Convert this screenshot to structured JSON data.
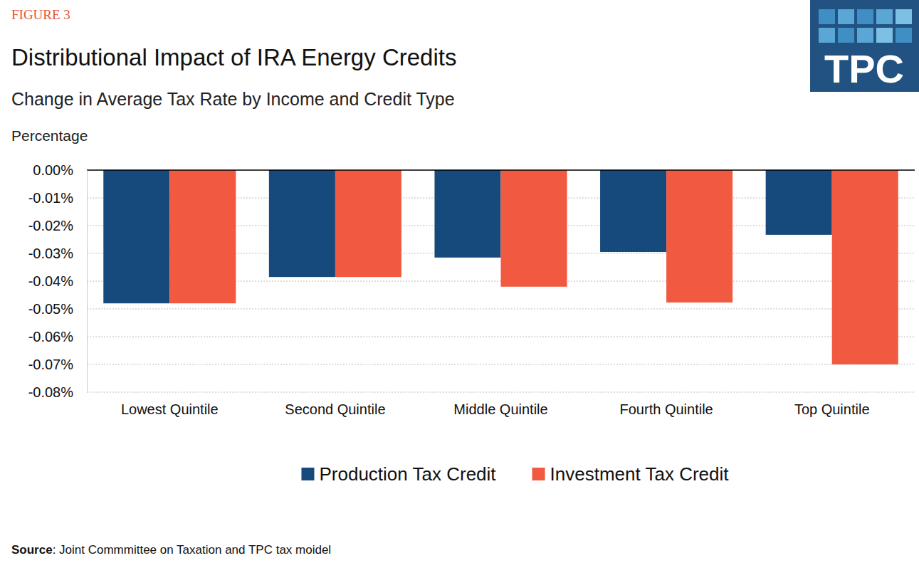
{
  "chart_data": {
    "type": "bar",
    "figure_label": "FIGURE 3",
    "title": "Distributional Impact of IRA Energy Credits",
    "subtitle": "Change in Average Tax Rate by Income and Credit Type",
    "y_label": "Percentage",
    "source": "Source: Joint Commmittee on Taxation and TPC tax moidel",
    "logo_text": "TPC",
    "categories": [
      "Lowest Quintile",
      "Second Quintile",
      "Middle Quintile",
      "Fourth Quintile",
      "Top Quintile"
    ],
    "series": [
      {
        "name": "Production Tax Credit",
        "color": "#174a7c",
        "values": [
          -0.048,
          -0.0385,
          -0.0315,
          -0.0295,
          -0.0233
        ]
      },
      {
        "name": "Investment Tax Credit",
        "color": "#f15a40",
        "values": [
          -0.048,
          -0.0385,
          -0.042,
          -0.0477,
          -0.07
        ]
      }
    ],
    "ylim": [
      -0.08,
      0
    ],
    "yticks": [
      {
        "value": 0,
        "label": "0.00%"
      },
      {
        "value": -0.01,
        "label": "-0.01%"
      },
      {
        "value": -0.02,
        "label": "-0.02%"
      },
      {
        "value": -0.03,
        "label": "-0.03%"
      },
      {
        "value": -0.04,
        "label": "-0.04%"
      },
      {
        "value": -0.05,
        "label": "-0.05%"
      },
      {
        "value": -0.06,
        "label": "-0.06%"
      },
      {
        "value": -0.07,
        "label": "-0.07%"
      },
      {
        "value": -0.08,
        "label": "-0.08%"
      }
    ],
    "grid": true,
    "legend": "bottom"
  }
}
